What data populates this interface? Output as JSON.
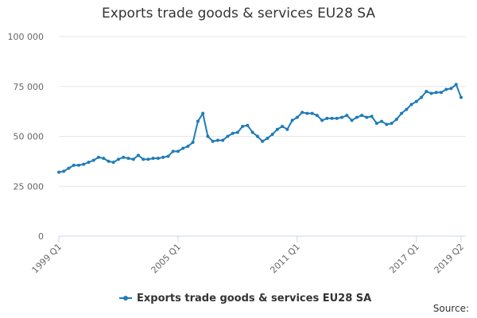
{
  "chart_data": {
    "type": "line",
    "title": "Exports trade goods & services EU28 SA",
    "source": "Source:",
    "categories": [
      "1999 Q1",
      null,
      null,
      null,
      null,
      null,
      null,
      null,
      null,
      null,
      null,
      null,
      null,
      null,
      null,
      null,
      null,
      null,
      null,
      null,
      null,
      null,
      null,
      null,
      "2005 Q1",
      null,
      null,
      null,
      null,
      null,
      null,
      null,
      null,
      null,
      null,
      null,
      null,
      null,
      null,
      null,
      null,
      null,
      null,
      null,
      null,
      null,
      null,
      null,
      "2011 Q1",
      null,
      null,
      null,
      null,
      null,
      null,
      null,
      null,
      null,
      null,
      null,
      null,
      null,
      null,
      null,
      null,
      null,
      null,
      null,
      null,
      null,
      null,
      null,
      "2017 Q1",
      null,
      null,
      null,
      null,
      null,
      null,
      null,
      null,
      "2019 Q2"
    ],
    "series": [
      {
        "name": "Exports trade goods & services EU28 SA",
        "color": "#1f7bb6",
        "values": [
          32000,
          32500,
          34000,
          35500,
          35500,
          36000,
          37000,
          38000,
          39500,
          39000,
          37500,
          37000,
          38500,
          39500,
          39000,
          38500,
          40500,
          38500,
          38500,
          39000,
          39000,
          39500,
          40000,
          42500,
          42500,
          44000,
          45000,
          47000,
          57500,
          61500,
          50000,
          47500,
          48000,
          48000,
          50000,
          51500,
          52000,
          55000,
          55500,
          52000,
          50000,
          47500,
          49000,
          51000,
          53500,
          55000,
          53500,
          58000,
          59500,
          62000,
          61500,
          61500,
          60500,
          58000,
          59000,
          59000,
          59000,
          59500,
          60500,
          58000,
          59500,
          60500,
          59500,
          60000,
          56500,
          57500,
          56000,
          56500,
          58500,
          61500,
          63500,
          66000,
          67500,
          69500,
          72500,
          71500,
          72000,
          72000,
          73500,
          74000,
          76000,
          69500
        ]
      }
    ],
    "ylim": [
      0,
      100000
    ],
    "yticks": [
      0,
      {
        "value": 25000,
        "label": "25 000"
      },
      {
        "value": 50000,
        "label": "50 000"
      },
      {
        "value": 75000,
        "label": "75 000"
      },
      {
        "value": 100000,
        "label": "100 000"
      }
    ],
    "grid": true
  }
}
